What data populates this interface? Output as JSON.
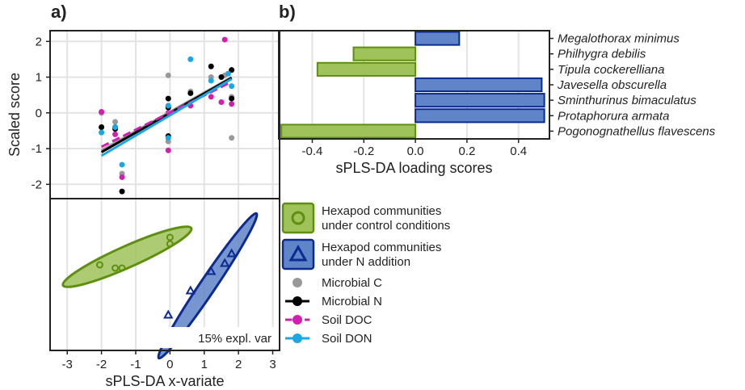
{
  "panel_labels": {
    "a": "a)",
    "b": "b)"
  },
  "colors": {
    "control": "#5f8f0f",
    "control_fill": "#9fc25a",
    "naddition": "#0d2a91",
    "naddition_fill": "#5f84c8",
    "microbial_c": "#999999",
    "microbial_n": "#000000",
    "soil_doc": "#d21fb0",
    "soil_don": "#1aa7e3"
  },
  "chart_data": [
    {
      "id": "top-left",
      "type": "scatter",
      "ylabel": "Scaled score",
      "xlim": [
        -3.5,
        3.2
      ],
      "ylim": [
        -2.4,
        2.3
      ],
      "yticks": [
        -2,
        -1,
        0,
        1,
        2
      ],
      "series": [
        {
          "name": "Microbial C",
          "key": "microbial_c",
          "x": [
            -2.0,
            -2.0,
            -1.6,
            -1.4,
            -0.05,
            -0.05,
            -0.05,
            0.6,
            1.2,
            1.6,
            1.8,
            1.8
          ],
          "y": [
            -0.4,
            0.0,
            -0.25,
            -1.7,
            1.05,
            -0.8,
            0.2,
            0.6,
            1.0,
            1.05,
            0.45,
            -0.7
          ],
          "fit": [
            [
              -2.0,
              -1.05
            ],
            [
              1.8,
              1.0
            ]
          ]
        },
        {
          "name": "Microbial N",
          "key": "microbial_n",
          "x": [
            -2.0,
            -1.6,
            -1.6,
            -1.4,
            -0.05,
            -0.05,
            -0.05,
            0.6,
            1.2,
            1.5,
            1.8,
            1.8
          ],
          "y": [
            -0.4,
            -0.45,
            -0.4,
            -2.2,
            0.4,
            -0.65,
            0.15,
            0.55,
            1.3,
            1.0,
            1.2,
            0.4
          ],
          "fit": [
            [
              -2.0,
              -1.1
            ],
            [
              1.8,
              0.98
            ]
          ]
        },
        {
          "name": "Soil DOC",
          "key": "soil_doc",
          "x": [
            -2.0,
            -1.6,
            -1.4,
            -0.05,
            -0.05,
            0.6,
            1.2,
            1.5,
            1.6,
            1.8
          ],
          "y": [
            0.03,
            -0.6,
            -1.8,
            -1.05,
            0.0,
            0.2,
            0.45,
            0.3,
            2.05,
            0.25
          ],
          "fit": [
            [
              -2.0,
              -0.95
            ],
            [
              1.8,
              0.87
            ]
          ]
        },
        {
          "name": "Soil DON",
          "key": "soil_don",
          "x": [
            -2.0,
            -1.6,
            -1.4,
            -0.05,
            -0.05,
            0.6,
            1.2,
            1.7,
            1.8
          ],
          "y": [
            -0.55,
            -0.4,
            -1.45,
            0.2,
            -0.7,
            1.5,
            0.9,
            1.1,
            0.75
          ],
          "fit": [
            [
              -2.0,
              -1.2
            ],
            [
              1.8,
              0.95
            ]
          ]
        }
      ]
    },
    {
      "id": "bottom-left",
      "type": "scatter",
      "xlabel": "sPLS-DA x-variate",
      "xticks": [
        -3,
        -2,
        -1,
        0,
        1,
        2,
        3
      ],
      "xlim": [
        -3.5,
        3.2
      ],
      "ylim": [
        -2.4,
        2.3
      ],
      "annotation": "15% expl. var",
      "groups": [
        {
          "name": "Hexapod communities under control conditions",
          "key": "control",
          "marker": "circle",
          "x": [
            -2.05,
            -1.6,
            -1.4,
            0.0,
            0.0
          ],
          "y": [
            0.25,
            0.15,
            0.15,
            0.9,
            1.1
          ],
          "ellipse": {
            "cx": -1.25,
            "cy": 0.5,
            "rx": 2.05,
            "ry": 0.33,
            "angle_deg": -24
          }
        },
        {
          "name": "Hexapod communities under N addition",
          "key": "naddition",
          "marker": "triangle",
          "x": [
            -0.05,
            0.6,
            1.2,
            1.6,
            1.8
          ],
          "y": [
            -1.3,
            -0.55,
            0.05,
            0.3,
            0.6
          ],
          "ellipse": {
            "cx": 1.1,
            "cy": -0.4,
            "rx": 2.55,
            "ry": 0.24,
            "angle_deg": -56
          }
        }
      ]
    },
    {
      "id": "right",
      "type": "bar",
      "orientation": "horizontal",
      "xlabel": "sPLS-DA loading scores",
      "xticks": [
        -0.4,
        -0.2,
        0.0,
        0.2,
        0.4
      ],
      "xtick_labels": [
        "-0.4",
        "-0.2",
        "0.0",
        "0.2",
        "0.4"
      ],
      "xlim": [
        -0.53,
        0.52
      ],
      "categories": [
        "Megalothorax minimus",
        "Philhygra debilis",
        "Tipula cockerelliana",
        "Javesella obscurella",
        "Sminthurinus bimaculatus",
        "Protaphorura armata",
        "Pogonognathellus flavescens"
      ],
      "values": [
        0.17,
        -0.24,
        -0.38,
        0.49,
        0.5,
        0.5,
        -0.52
      ],
      "groups": [
        "naddition",
        "control",
        "control",
        "naddition",
        "naddition",
        "naddition",
        "control"
      ]
    }
  ],
  "legend": {
    "groups": [
      {
        "key": "control",
        "marker": "circle",
        "line1": "Hexapod communities",
        "line2": "under control conditions"
      },
      {
        "key": "naddition",
        "marker": "triangle",
        "line1": "Hexapod communities",
        "line2": "under N addition"
      }
    ],
    "variables": [
      {
        "key": "microbial_c",
        "label": "Microbial C"
      },
      {
        "key": "microbial_n",
        "label": "Microbial N"
      },
      {
        "key": "soil_doc",
        "label": "Soil DOC"
      },
      {
        "key": "soil_don",
        "label": "Soil DON"
      }
    ]
  }
}
